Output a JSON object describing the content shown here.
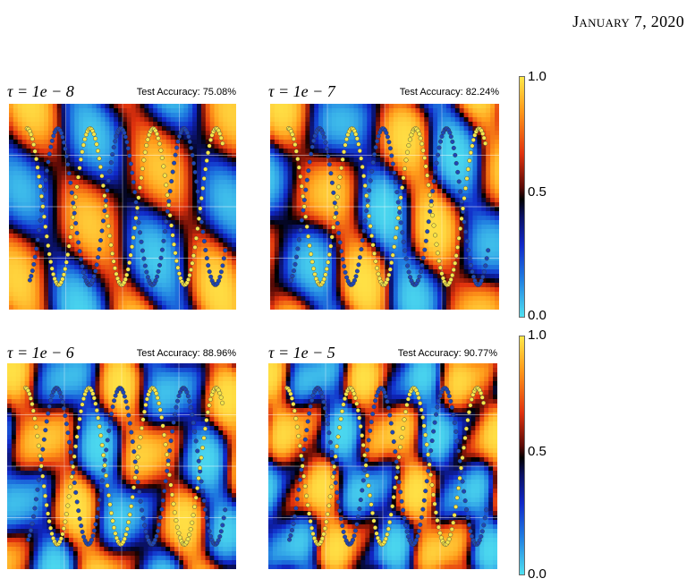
{
  "header": {
    "month": "January",
    "date": "7, 2020"
  },
  "panels": [
    {
      "tau": "τ = 1e − 8",
      "accuracy": "Test Accuracy: 75.08%"
    },
    {
      "tau": "τ = 1e − 7",
      "accuracy": "Test Accuracy: 82.24%"
    },
    {
      "tau": "τ = 1e − 6",
      "accuracy": "Test Accuracy: 88.96%"
    },
    {
      "tau": "τ = 1e − 5",
      "accuracy": "Test Accuracy: 90.77%"
    }
  ],
  "colorbar": {
    "ticks": [
      "1.0",
      "0.5",
      "0.0"
    ]
  },
  "colors": {
    "high": "#ffe84a",
    "mid": "#000000",
    "low": "#4fe0f0",
    "class_a": "#f5e64a",
    "class_b": "#1e47b8"
  }
}
